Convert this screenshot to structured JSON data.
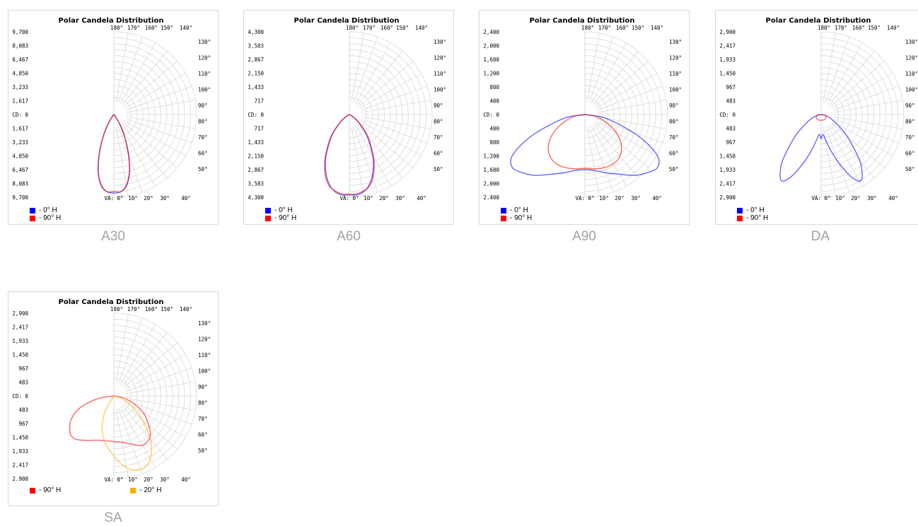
{
  "charts": [
    {
      "caption": "A30",
      "chart_data": {
        "type": "polar",
        "title": "Polar Candela Distribution",
        "unit_label": "CD: 0",
        "va_label": "VA: 0°",
        "rmax": 9700,
        "y_ticks_up": [
          "9,700",
          "8,083",
          "6,467",
          "4,850",
          "3,233",
          "1,617"
        ],
        "y_ticks_down": [
          "1,617",
          "3,233",
          "4,850",
          "6,467",
          "8,083",
          "9,700"
        ],
        "top_angle_labels": [
          "180°",
          "170°",
          "160°",
          "150°",
          "140°"
        ],
        "right_angle_labels": [
          "130°",
          "120°",
          "110°",
          "100°",
          "90°",
          "80°",
          "70°",
          "60°",
          "50°"
        ],
        "bottom_angle_labels": [
          "10°",
          "20°",
          "30°",
          "40°"
        ],
        "series": [
          {
            "name": "- 0° H",
            "color": "#0000ff",
            "x": [
              0,
              5,
              10,
              15,
              20,
              25,
              30,
              40,
              50,
              60
            ],
            "y": [
              9200,
              9100,
              8500,
              7100,
              5100,
              3200,
              1700,
              300,
              50,
              0
            ]
          },
          {
            "name": "- 90° H",
            "color": "#ff0000",
            "x": [
              0,
              5,
              10,
              15,
              20,
              25,
              30,
              40,
              50,
              60
            ],
            "y": [
              9000,
              9100,
              8400,
              7000,
              5000,
              3100,
              1600,
              250,
              50,
              0
            ]
          }
        ]
      }
    },
    {
      "caption": "A60",
      "chart_data": {
        "type": "polar",
        "title": "Polar Candela Distribution",
        "unit_label": "CD: 0",
        "va_label": "VA: 0°",
        "rmax": 4300,
        "y_ticks_up": [
          "4,300",
          "3,583",
          "2,867",
          "2,150",
          "1,433",
          "717"
        ],
        "y_ticks_down": [
          "717",
          "1,433",
          "2,150",
          "2,867",
          "3,583",
          "4,300"
        ],
        "top_angle_labels": [
          "180°",
          "170°",
          "160°",
          "150°",
          "140°"
        ],
        "right_angle_labels": [
          "130°",
          "120°",
          "110°",
          "100°",
          "90°",
          "80°",
          "70°",
          "60°",
          "50°"
        ],
        "bottom_angle_labels": [
          "10°",
          "20°",
          "30°",
          "40°"
        ],
        "series": [
          {
            "name": "- 0° H",
            "color": "#0000ff",
            "x": [
              0,
              5,
              10,
              15,
              20,
              25,
              30,
              40,
              50,
              60,
              70
            ],
            "y": [
              4180,
              4190,
              4100,
              3850,
              3450,
              2950,
              2400,
              1400,
              600,
              150,
              0
            ]
          },
          {
            "name": "- 90° H",
            "color": "#ff0000",
            "x": [
              0,
              5,
              10,
              15,
              20,
              25,
              30,
              40,
              50,
              60,
              70
            ],
            "y": [
              4130,
              4150,
              4050,
              3900,
              3550,
              3050,
              2500,
              1500,
              650,
              180,
              0
            ]
          }
        ]
      }
    },
    {
      "caption": "A90",
      "chart_data": {
        "type": "polar",
        "title": "Polar Candela Distribution",
        "unit_label": "CD: 0",
        "va_label": "VA: 0°",
        "rmax": 2400,
        "y_ticks_up": [
          "2,400",
          "2,000",
          "1,600",
          "1,200",
          "800",
          "400"
        ],
        "y_ticks_down": [
          "400",
          "800",
          "1,200",
          "1,600",
          "2,000",
          "2.400"
        ],
        "top_angle_labels": [
          "180°",
          "170°",
          "160°",
          "150°",
          "140°"
        ],
        "right_angle_labels": [
          "130°",
          "120°",
          "110°",
          "100°",
          "90°",
          "80°",
          "70°",
          "60°",
          "50°"
        ],
        "bottom_angle_labels": [
          "10°",
          "20°",
          "30°",
          "40°"
        ],
        "series": [
          {
            "name": "- 0° H",
            "color": "#0000ff",
            "x": [
              0,
              10,
              20,
              30,
              40,
              50,
              55,
              60,
              65,
              70,
              80,
              90
            ],
            "y": [
              1600,
              1650,
              1800,
              2000,
              2300,
              2550,
              2600,
              2450,
              2000,
              1450,
              600,
              0
            ]
          },
          {
            "name": "- 90° H",
            "color": "#ff0000",
            "x": [
              0,
              10,
              20,
              30,
              40,
              50,
              60,
              70,
              80,
              90
            ],
            "y": [
              1560,
              1600,
              1640,
              1650,
              1580,
              1380,
              1050,
              650,
              300,
              0
            ]
          }
        ]
      }
    },
    {
      "caption": "DA",
      "chart_data": {
        "type": "polar",
        "title": "Polar Candela Distribution",
        "unit_label": "CD: 0",
        "va_label": "VA: 0°",
        "rmax": 2900,
        "y_ticks_up": [
          "2,900",
          "2,417",
          "1,933",
          "1,450",
          "967",
          "483"
        ],
        "y_ticks_down": [
          "483",
          "967",
          "1,450",
          "1,933",
          "2,417",
          "2,900"
        ],
        "top_angle_labels": [
          "180°",
          "170°",
          "160°",
          "150°",
          "140°"
        ],
        "right_angle_labels": [
          "130°",
          "120°",
          "110°",
          "100°",
          "90°",
          "80°",
          "70°",
          "60°",
          "50°"
        ],
        "bottom_angle_labels": [
          "10°",
          "20°",
          "30°",
          "40°"
        ],
        "series": [
          {
            "name": "- 0° H",
            "color": "#0000ff",
            "x": [
              0,
              5,
              10,
              15,
              20,
              25,
              28,
              30,
              32,
              35,
              40,
              50,
              60,
              70,
              80,
              90
            ],
            "y": [
              850,
              700,
              900,
              1300,
              1800,
              2350,
              2600,
              2700,
              2680,
              2500,
              2100,
              1200,
              600,
              300,
              100,
              0
            ]
          },
          {
            "name": "- 90° H",
            "color": "#ff0000",
            "x": [
              0,
              20,
              40,
              60,
              80,
              90
            ],
            "y": [
              200,
              205,
              215,
              200,
              140,
              0
            ]
          }
        ]
      }
    },
    {
      "caption": "SA",
      "chart_data": {
        "type": "polar",
        "title": "Polar Candela Distribution",
        "unit_label": "CD: 0",
        "va_label": "VA: 0°",
        "rmax": 2900,
        "y_ticks_up": [
          "2,900",
          "2,417",
          "1,933",
          "1,450",
          "967",
          "483"
        ],
        "y_ticks_down": [
          "483",
          "967",
          "1,450",
          "1,933",
          "2,417",
          "2.900"
        ],
        "top_angle_labels": [
          "180°",
          "170°",
          "160°",
          "150°",
          "140°"
        ],
        "right_angle_labels": [
          "130°",
          "120°",
          "110°",
          "100°",
          "90°",
          "80°",
          "70°",
          "60°",
          "50°"
        ],
        "bottom_angle_labels": [
          "10°",
          "20°",
          "30°",
          "40°"
        ],
        "legend_horizontal": true,
        "series": [
          {
            "name": "- 90° H",
            "color": "#ff0000",
            "x": [
              -90,
              -80,
              -70,
              -60,
              -50,
              -45,
              -40,
              -30,
              -20,
              -10,
              0,
              10,
              20,
              30,
              40,
              45,
              50,
              60,
              70,
              80,
              90
            ],
            "y": [
              0,
              600,
              1300,
              1750,
              2000,
              2050,
              2000,
              1800,
              1650,
              1600,
              1600,
              1650,
              1800,
              2000,
              1950,
              1800,
              1600,
              1200,
              700,
              300,
              0
            ]
          },
          {
            "name": "- 20° H",
            "color": "#ffaa00",
            "x": [
              -40,
              -30,
              -20,
              -10,
              0,
              5,
              10,
              15,
              20,
              25,
              30,
              35,
              40,
              50,
              60,
              70,
              80,
              90
            ],
            "y": [
              0,
              600,
              1200,
              1700,
              2100,
              2350,
              2550,
              2700,
              2750,
              2700,
              2550,
              2300,
              2000,
              1300,
              700,
              300,
              80,
              0
            ]
          }
        ]
      }
    }
  ]
}
